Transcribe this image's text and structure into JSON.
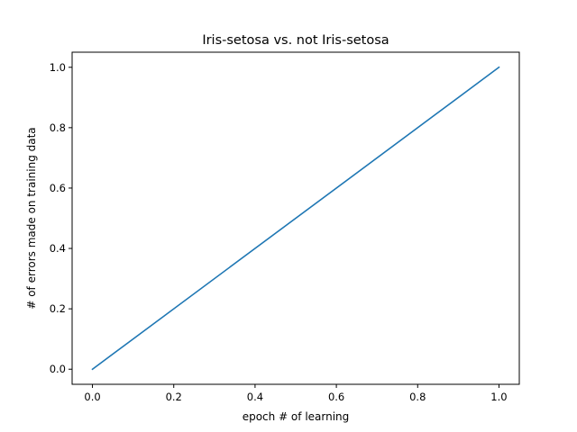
{
  "chart_data": {
    "type": "line",
    "title": "Iris-setosa vs. not Iris-setosa",
    "xlabel": "epoch # of learning",
    "ylabel": "# of errors made on training data",
    "xlim": [
      -0.05,
      1.05
    ],
    "ylim": [
      -0.05,
      1.05
    ],
    "xticks": [
      0.0,
      0.2,
      0.4,
      0.6,
      0.8,
      1.0
    ],
    "xtick_labels": [
      "0.0",
      "0.2",
      "0.4",
      "0.6",
      "0.8",
      "1.0"
    ],
    "yticks": [
      0.0,
      0.2,
      0.4,
      0.6,
      0.8,
      1.0
    ],
    "ytick_labels": [
      "0.0",
      "0.2",
      "0.4",
      "0.6",
      "0.8",
      "1.0"
    ],
    "grid": false,
    "series": [
      {
        "x": [
          0,
          1
        ],
        "y": [
          0,
          1
        ],
        "color": "#1f77b4"
      }
    ]
  }
}
